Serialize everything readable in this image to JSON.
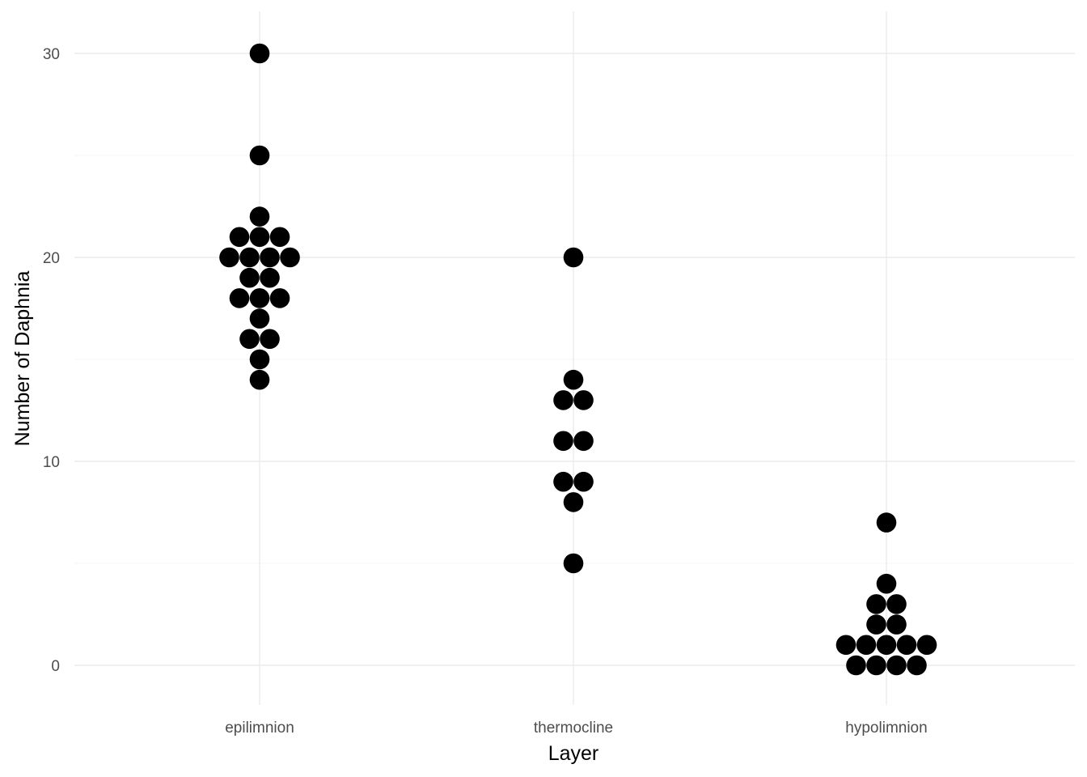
{
  "chart_data": {
    "type": "dotplot",
    "xlabel": "Layer",
    "ylabel": "Number of Daphnia",
    "categories": [
      "epilimnion",
      "thermocline",
      "hypolimnion"
    ],
    "ylim": [
      -2,
      32
    ],
    "yticks": [
      0,
      10,
      20,
      30
    ],
    "grid": true,
    "legend": "none",
    "point_color": "#000000",
    "grid_color": "#ebebeb",
    "groups": [
      {
        "category": "epilimnion",
        "values": [
          30,
          25,
          22,
          21,
          21,
          21,
          20,
          20,
          20,
          20,
          19,
          19,
          18,
          18,
          18,
          17,
          16,
          16,
          15,
          14
        ]
      },
      {
        "category": "thermocline",
        "values": [
          20,
          14,
          13,
          13,
          11,
          11,
          9,
          9,
          8,
          5
        ]
      },
      {
        "category": "hypolimnion",
        "values": [
          7,
          4,
          3,
          3,
          2,
          2,
          1,
          1,
          1,
          1,
          1,
          0,
          0,
          0,
          0
        ]
      }
    ]
  }
}
